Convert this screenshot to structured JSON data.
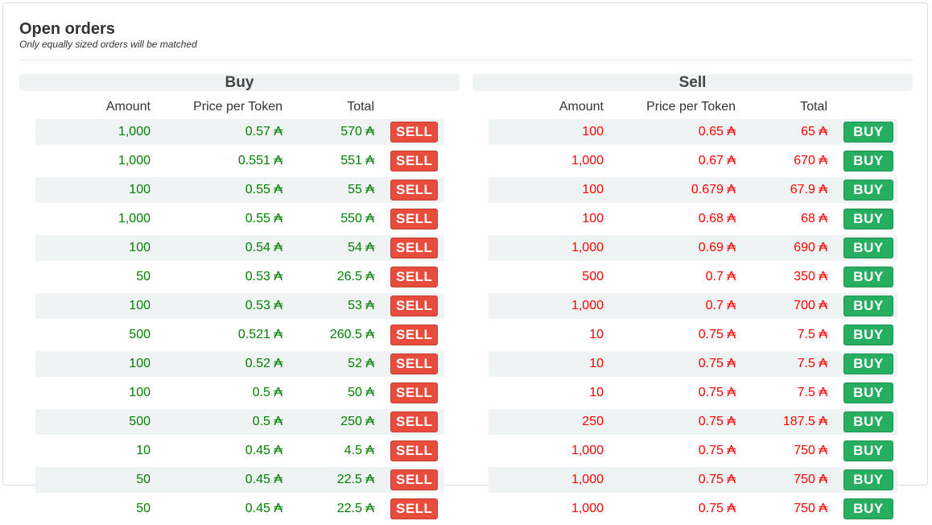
{
  "header": {
    "title": "Open orders",
    "subtitle": "Only equally sized orders will be matched"
  },
  "currency_symbol": "₳",
  "colors": {
    "sell_button": "#e74c3c",
    "buy_button": "#27ae60",
    "buy_values": "#008000",
    "sell_values": "#ff0000"
  },
  "buy": {
    "heading": "Buy",
    "columns": [
      "Amount",
      "Price per Token",
      "Total"
    ],
    "action_label": "SELL",
    "rows": [
      {
        "amount": "1,000",
        "price": "0.57 ₳",
        "total": "570 ₳"
      },
      {
        "amount": "1,000",
        "price": "0.551 ₳",
        "total": "551 ₳"
      },
      {
        "amount": "100",
        "price": "0.55 ₳",
        "total": "55 ₳"
      },
      {
        "amount": "1,000",
        "price": "0.55 ₳",
        "total": "550 ₳"
      },
      {
        "amount": "100",
        "price": "0.54 ₳",
        "total": "54 ₳"
      },
      {
        "amount": "50",
        "price": "0.53 ₳",
        "total": "26.5 ₳"
      },
      {
        "amount": "100",
        "price": "0.53 ₳",
        "total": "53 ₳"
      },
      {
        "amount": "500",
        "price": "0.521 ₳",
        "total": "260.5 ₳"
      },
      {
        "amount": "100",
        "price": "0.52 ₳",
        "total": "52 ₳"
      },
      {
        "amount": "100",
        "price": "0.5 ₳",
        "total": "50 ₳"
      },
      {
        "amount": "500",
        "price": "0.5 ₳",
        "total": "250 ₳"
      },
      {
        "amount": "10",
        "price": "0.45 ₳",
        "total": "4.5 ₳"
      },
      {
        "amount": "50",
        "price": "0.45 ₳",
        "total": "22.5 ₳"
      },
      {
        "amount": "50",
        "price": "0.45 ₳",
        "total": "22.5 ₳"
      }
    ]
  },
  "sell": {
    "heading": "Sell",
    "columns": [
      "Amount",
      "Price per Token",
      "Total"
    ],
    "action_label": "BUY",
    "rows": [
      {
        "amount": "100",
        "price": "0.65 ₳",
        "total": "65 ₳"
      },
      {
        "amount": "1,000",
        "price": "0.67 ₳",
        "total": "670 ₳"
      },
      {
        "amount": "100",
        "price": "0.679 ₳",
        "total": "67.9 ₳"
      },
      {
        "amount": "100",
        "price": "0.68 ₳",
        "total": "68 ₳"
      },
      {
        "amount": "1,000",
        "price": "0.69 ₳",
        "total": "690 ₳"
      },
      {
        "amount": "500",
        "price": "0.7 ₳",
        "total": "350 ₳"
      },
      {
        "amount": "1,000",
        "price": "0.7 ₳",
        "total": "700 ₳"
      },
      {
        "amount": "10",
        "price": "0.75 ₳",
        "total": "7.5 ₳"
      },
      {
        "amount": "10",
        "price": "0.75 ₳",
        "total": "7.5 ₳"
      },
      {
        "amount": "10",
        "price": "0.75 ₳",
        "total": "7.5 ₳"
      },
      {
        "amount": "250",
        "price": "0.75 ₳",
        "total": "187.5 ₳"
      },
      {
        "amount": "1,000",
        "price": "0.75 ₳",
        "total": "750 ₳"
      },
      {
        "amount": "1,000",
        "price": "0.75 ₳",
        "total": "750 ₳"
      },
      {
        "amount": "1,000",
        "price": "0.75 ₳",
        "total": "750 ₳"
      }
    ]
  }
}
